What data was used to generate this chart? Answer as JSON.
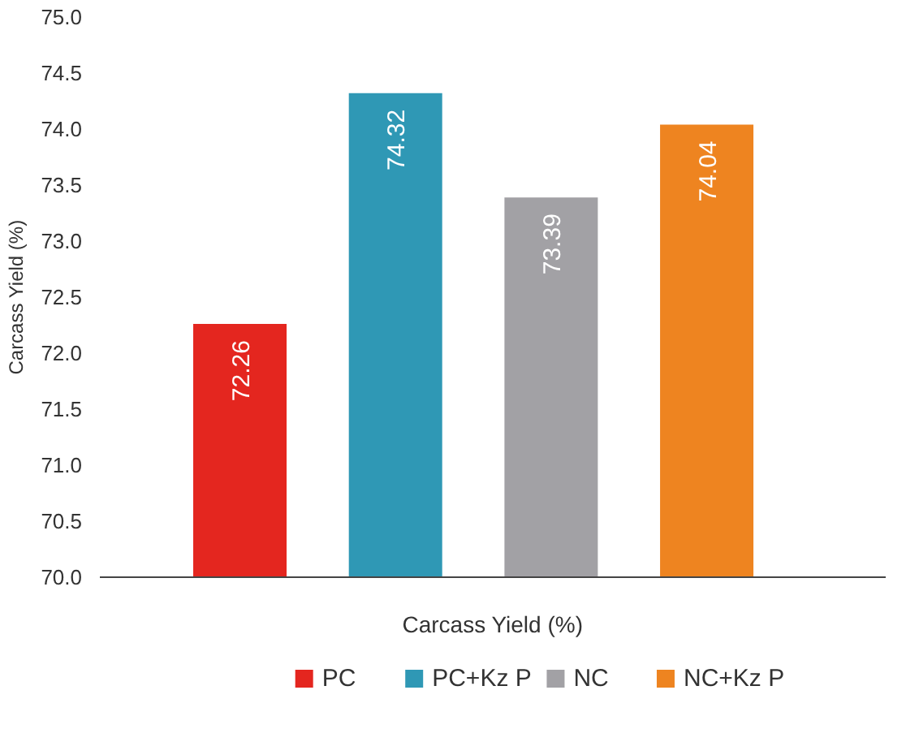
{
  "chart_data": {
    "type": "bar",
    "categories": [
      null,
      null,
      null,
      null
    ],
    "xlabel": "Carcass Yield (%)",
    "ylabel": "Carcass Yield (%)",
    "series": [
      {
        "name": "PC",
        "color": "#e4261f",
        "values": [
          72.26,
          null,
          null,
          null
        ]
      },
      {
        "name": "PC+Kz P",
        "color": "#2f98b5",
        "values": [
          null,
          74.32,
          null,
          null
        ]
      },
      {
        "name": "NC",
        "color": "#a2a1a5",
        "values": [
          null,
          null,
          73.39,
          null
        ]
      },
      {
        "name": "NC+Kz P",
        "color": "#ee8420",
        "values": [
          null,
          null,
          null,
          74.04
        ]
      }
    ],
    "ylim": [
      70,
      75
    ],
    "yticks": [
      {
        "value": 70,
        "label": "70.0"
      },
      {
        "value": 70.5,
        "label": "70.5"
      },
      {
        "value": 71,
        "label": "71.0"
      },
      {
        "value": 71.5,
        "label": "71.5"
      },
      {
        "value": 72,
        "label": "72.0"
      },
      {
        "value": 72.5,
        "label": "72.5"
      },
      {
        "value": 73,
        "label": "73.0"
      },
      {
        "value": 73.5,
        "label": "73.5"
      },
      {
        "value": 74,
        "label": "74.0"
      },
      {
        "value": 74.5,
        "label": "74.5"
      },
      {
        "value": 75,
        "label": "75.0"
      }
    ],
    "tick_labels": "y",
    "data_labels": true,
    "grid": false,
    "legend": "bottom"
  }
}
